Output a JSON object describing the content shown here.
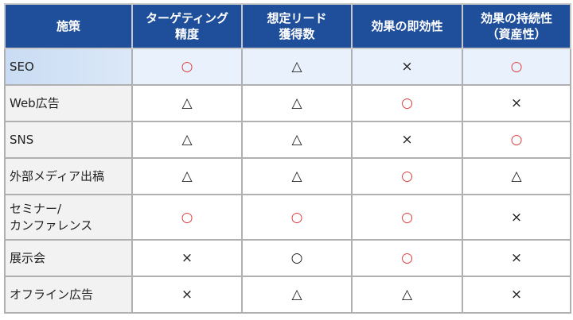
{
  "colors": {
    "header_bg": "#1f4e9a",
    "good_mark": "#e03a3a",
    "highlight_row": "#e9f2fc"
  },
  "headers": [
    "施策",
    "ターゲティング\n精度",
    "想定リード\n獲得数",
    "効果の即効性",
    "効果の持続性\n（資産性）"
  ],
  "rows": [
    {
      "name": "SEO",
      "highlight": true,
      "cells": [
        {
          "mark": "○",
          "color": "red"
        },
        {
          "mark": "△",
          "color": "black"
        },
        {
          "mark": "×",
          "color": "black"
        },
        {
          "mark": "○",
          "color": "red"
        }
      ]
    },
    {
      "name": "Web広告",
      "cells": [
        {
          "mark": "△",
          "color": "black"
        },
        {
          "mark": "△",
          "color": "black"
        },
        {
          "mark": "○",
          "color": "red"
        },
        {
          "mark": "×",
          "color": "black"
        }
      ]
    },
    {
      "name": "SNS",
      "cells": [
        {
          "mark": "△",
          "color": "black"
        },
        {
          "mark": "△",
          "color": "black"
        },
        {
          "mark": "×",
          "color": "black"
        },
        {
          "mark": "○",
          "color": "red"
        }
      ]
    },
    {
      "name": "外部メディア出稿",
      "cells": [
        {
          "mark": "△",
          "color": "black"
        },
        {
          "mark": "△",
          "color": "black"
        },
        {
          "mark": "○",
          "color": "red"
        },
        {
          "mark": "△",
          "color": "black"
        }
      ]
    },
    {
      "name": "セミナー/\nカンファレンス",
      "cells": [
        {
          "mark": "○",
          "color": "red"
        },
        {
          "mark": "○",
          "color": "red"
        },
        {
          "mark": "○",
          "color": "red"
        },
        {
          "mark": "×",
          "color": "black"
        }
      ]
    },
    {
      "name": "展示会",
      "cells": [
        {
          "mark": "×",
          "color": "black"
        },
        {
          "mark": "○",
          "color": "black"
        },
        {
          "mark": "○",
          "color": "red"
        },
        {
          "mark": "×",
          "color": "black"
        }
      ]
    },
    {
      "name": "オフライン広告",
      "cells": [
        {
          "mark": "×",
          "color": "black"
        },
        {
          "mark": "△",
          "color": "black"
        },
        {
          "mark": "△",
          "color": "black"
        },
        {
          "mark": "×",
          "color": "black"
        }
      ]
    }
  ]
}
